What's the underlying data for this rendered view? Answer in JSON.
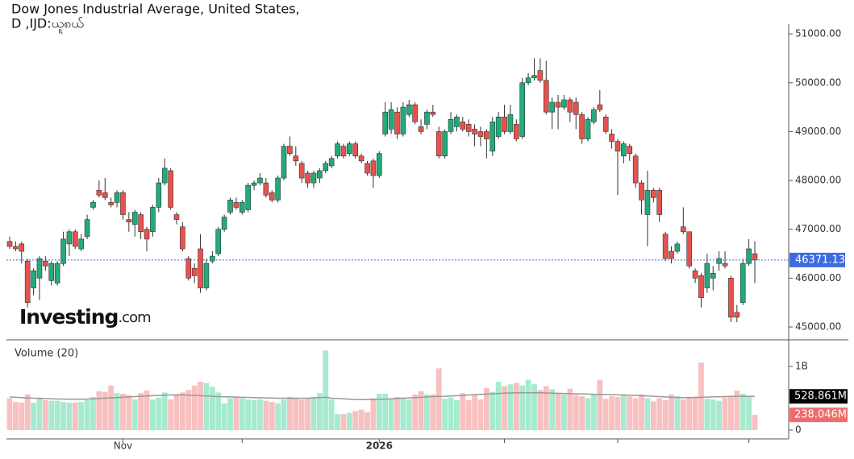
{
  "chart_data": {
    "type": "candlestick",
    "title": "Dow Jones Industrial Average, United States,",
    "subtitle": "D ,IJD:ယူ၈ယ်",
    "brand": {
      "name": "Investing",
      "suffix": ".com"
    },
    "volume_title": "Volume (20)",
    "up_color": "#22ab79",
    "down_color": "#e8524d",
    "volume_up_color": "#a6ebcf",
    "volume_down_color": "#f8c0c0",
    "ma_color": "#999999",
    "price_line_color": "#3d6be0",
    "grid": false,
    "categories": [
      null,
      null,
      null,
      null,
      null,
      null,
      null,
      null,
      null,
      null,
      null,
      null,
      null,
      null,
      null,
      null,
      null,
      null,
      null,
      "Nov",
      null,
      null,
      null,
      null,
      null,
      null,
      null,
      null,
      null,
      null,
      null,
      null,
      null,
      null,
      null,
      null,
      null,
      null,
      null,
      null,
      null,
      null,
      null,
      null,
      null,
      null,
      null,
      null,
      null,
      null,
      null,
      null,
      null,
      null,
      null,
      null,
      null,
      null,
      null,
      null,
      null,
      null,
      "2026",
      null,
      null,
      null,
      null,
      null,
      null,
      null,
      null,
      null,
      null,
      null,
      null,
      null,
      null,
      null,
      null,
      null,
      null,
      null,
      null,
      null,
      null,
      null,
      null,
      null,
      null,
      null,
      null,
      null,
      null,
      null,
      null,
      null,
      null,
      null,
      null,
      null,
      null,
      null,
      null,
      null,
      null,
      null,
      null,
      null,
      null,
      null,
      null,
      null,
      null,
      null,
      null,
      null,
      null,
      null,
      null,
      null,
      null,
      null,
      null,
      null,
      null,
      null
    ],
    "xticks": [
      19,
      39,
      62,
      83,
      102,
      124
    ],
    "open": [
      46750,
      46650,
      46700,
      46350,
      45800,
      46000,
      46350,
      45950,
      45900,
      46300,
      46700,
      46950,
      46600,
      46850,
      47450,
      47800,
      47750,
      47550,
      47550,
      47750,
      47200,
      47100,
      47300,
      47000,
      46950,
      47450,
      47950,
      48200,
      47300,
      47050,
      46400,
      46200,
      46600,
      45800,
      46350,
      46500,
      47000,
      47350,
      47550,
      47350,
      47400,
      47900,
      47950,
      47950,
      47750,
      47600,
      48050,
      48700,
      48500,
      48350,
      48150,
      47950,
      48050,
      48200,
      48300,
      48500,
      48700,
      48550,
      48750,
      48500,
      48350,
      48400,
      48100,
      48950,
      49050,
      49400,
      48950,
      49350,
      49550,
      49100,
      49150,
      49400,
      49000,
      48500,
      49000,
      49100,
      49200,
      49150,
      49050,
      49000,
      49000,
      48600,
      48900,
      49300,
      49000,
      49150,
      48900,
      50000,
      50100,
      50250,
      50050,
      49400,
      49600,
      49500,
      49650,
      49600,
      49350,
      48850,
      49200,
      49550,
      49300,
      48950,
      48800,
      48500,
      48700,
      48500,
      47950,
      47300,
      47800,
      47800,
      46900,
      46550,
      46550,
      47050,
      46950,
      46150,
      46050,
      45800,
      46000,
      46300,
      46300,
      46000,
      45300,
      45500,
      46300,
      46500
    ],
    "high": [
      46850,
      46750,
      46750,
      46400,
      46200,
      46450,
      46450,
      46350,
      46350,
      46950,
      47000,
      47000,
      46900,
      47300,
      47600,
      48000,
      48050,
      47650,
      47800,
      47800,
      47350,
      47400,
      47350,
      47050,
      47500,
      48050,
      48450,
      48250,
      47350,
      47150,
      46450,
      46300,
      46900,
      46400,
      46550,
      47050,
      47300,
      47650,
      47650,
      47600,
      47950,
      48000,
      48150,
      48050,
      47800,
      48100,
      48750,
      48900,
      48700,
      48400,
      48200,
      48200,
      48250,
      48400,
      48500,
      48800,
      48750,
      48800,
      48800,
      48550,
      48400,
      48450,
      48600,
      49600,
      49600,
      49500,
      49600,
      49650,
      49600,
      49250,
      49450,
      49550,
      49100,
      49050,
      49400,
      49350,
      49300,
      49250,
      49150,
      49100,
      49050,
      49300,
      49400,
      49550,
      49550,
      49250,
      50100,
      50200,
      50500,
      50500,
      50450,
      49700,
      49750,
      49750,
      49700,
      49700,
      49400,
      49300,
      49500,
      49850,
      49350,
      49050,
      48850,
      48800,
      48750,
      48550,
      48000,
      48200,
      47850,
      47850,
      46950,
      46650,
      46750,
      47450,
      46950,
      46200,
      46100,
      46500,
      46250,
      46550,
      46550,
      46050,
      45450,
      46400,
      46800,
      46750
    ],
    "low": [
      46600,
      46550,
      46300,
      45400,
      45650,
      45550,
      46150,
      45850,
      45850,
      46250,
      46450,
      46600,
      46550,
      46800,
      47400,
      47650,
      47600,
      47450,
      47450,
      47200,
      46950,
      46850,
      46800,
      46550,
      46850,
      47350,
      47900,
      47400,
      47100,
      46550,
      45950,
      45900,
      45700,
      45750,
      46300,
      46450,
      46950,
      47300,
      47400,
      47300,
      47350,
      47800,
      47900,
      47650,
      47550,
      47550,
      48000,
      48500,
      48300,
      47950,
      47850,
      47850,
      47950,
      48150,
      48250,
      48450,
      48450,
      48500,
      48450,
      48350,
      48100,
      47850,
      48050,
      48900,
      48950,
      48850,
      48900,
      49300,
      49150,
      48950,
      49050,
      49300,
      48450,
      48450,
      48950,
      49000,
      49000,
      48900,
      48700,
      48700,
      48450,
      48500,
      48850,
      48950,
      48950,
      48800,
      48850,
      49950,
      50050,
      50000,
      49350,
      49050,
      49050,
      49450,
      49200,
      49050,
      48750,
      48800,
      49150,
      49400,
      48950,
      48650,
      47700,
      48350,
      48400,
      47850,
      47300,
      46650,
      47550,
      47150,
      46350,
      46300,
      46500,
      46900,
      46200,
      45900,
      45400,
      45700,
      45750,
      46150,
      46200,
      45100,
      45100,
      45450,
      46250,
      45900
    ],
    "close": [
      46650,
      46600,
      46550,
      45500,
      46150,
      46400,
      46250,
      46300,
      46300,
      46800,
      46950,
      46650,
      46800,
      47200,
      47550,
      47700,
      47650,
      47500,
      47750,
      47300,
      47150,
      47350,
      46950,
      46800,
      47450,
      47950,
      48250,
      47450,
      47200,
      46600,
      46000,
      46050,
      45800,
      46300,
      46450,
      47000,
      47250,
      47600,
      47450,
      47550,
      47900,
      47950,
      48050,
      47700,
      47600,
      48050,
      48700,
      48550,
      48400,
      48050,
      47950,
      48150,
      48200,
      48350,
      48450,
      48750,
      48500,
      48750,
      48500,
      48400,
      48150,
      48100,
      48550,
      49400,
      49450,
      48950,
      49500,
      49550,
      49200,
      49000,
      49400,
      49350,
      48500,
      49000,
      49250,
      49300,
      49050,
      49000,
      48950,
      48900,
      48850,
      49200,
      49300,
      49000,
      49350,
      48850,
      50000,
      50100,
      50150,
      50050,
      49400,
      49600,
      49500,
      49650,
      49400,
      49350,
      48850,
      49250,
      49450,
      49450,
      49000,
      48800,
      48600,
      48750,
      48550,
      47950,
      47600,
      47800,
      47650,
      47300,
      46400,
      46400,
      46700,
      46950,
      46250,
      46000,
      45600,
      46300,
      46100,
      46400,
      46250,
      45200,
      45200,
      46300,
      46600,
      46371.13
    ],
    "volume": [
      500,
      440,
      430,
      560,
      430,
      510,
      470,
      460,
      460,
      440,
      430,
      430,
      440,
      470,
      520,
      610,
      600,
      700,
      580,
      570,
      550,
      480,
      580,
      620,
      480,
      510,
      590,
      480,
      560,
      590,
      630,
      700,
      760,
      740,
      680,
      590,
      420,
      500,
      520,
      500,
      480,
      470,
      480,
      460,
      440,
      420,
      480,
      520,
      500,
      480,
      500,
      520,
      580,
      1250,
      480,
      250,
      250,
      270,
      300,
      320,
      280,
      500,
      570,
      570,
      500,
      520,
      510,
      480,
      560,
      610,
      560,
      560,
      970,
      490,
      510,
      470,
      580,
      470,
      560,
      480,
      660,
      600,
      760,
      690,
      720,
      740,
      700,
      790,
      720,
      630,
      690,
      640,
      580,
      560,
      650,
      550,
      530,
      500,
      560,
      790,
      490,
      530,
      520,
      550,
      530,
      500,
      560,
      500,
      450,
      500,
      470,
      560,
      530,
      480,
      520,
      520,
      1060,
      490,
      480,
      460,
      510,
      530,
      620,
      570,
      540,
      238.046
    ],
    "volume_ma": [
      520,
      515,
      510,
      505,
      500,
      498,
      495,
      490,
      488,
      486,
      485,
      484,
      484,
      486,
      490,
      495,
      500,
      505,
      510,
      515,
      520,
      525,
      530,
      535,
      540,
      545,
      548,
      550,
      552,
      550,
      548,
      545,
      540,
      535,
      530,
      525,
      522,
      520,
      518,
      515,
      512,
      510,
      508,
      505,
      503,
      500,
      500,
      500,
      500,
      500,
      500,
      505,
      510,
      515,
      500,
      495,
      490,
      485,
      480,
      478,
      478,
      480,
      482,
      485,
      490,
      495,
      500,
      505,
      510,
      515,
      520,
      525,
      528,
      530,
      535,
      540,
      545,
      550,
      555,
      560,
      565,
      570,
      575,
      580,
      582,
      585,
      585,
      585,
      585,
      585,
      582,
      580,
      578,
      575,
      572,
      570,
      568,
      565,
      562,
      560,
      558,
      555,
      552,
      550,
      548,
      545,
      540,
      535,
      530,
      525,
      520,
      515,
      512,
      510,
      510,
      512,
      515,
      518,
      520,
      522,
      525,
      528,
      530,
      530,
      529,
      528.861
    ],
    "volume_label": "238.046M",
    "volume_ma_label": "528.861M",
    "ylim": [
      44770,
      51200
    ],
    "yticks": [
      {
        "value": 45000,
        "label": "45000.00"
      },
      {
        "value": 46000,
        "label": "46000.00"
      },
      {
        "value": 47000,
        "label": "47000.00"
      },
      {
        "value": 48000,
        "label": "48000.00"
      },
      {
        "value": 49000,
        "label": "49000.00"
      },
      {
        "value": 50000,
        "label": "50000.00"
      },
      {
        "value": 51000,
        "label": "51000.00"
      }
    ],
    "y2lim": [
      0,
      1380
    ],
    "y2ticks": [
      0,
      {
        "value": 1000,
        "label": "1B"
      }
    ]
  }
}
